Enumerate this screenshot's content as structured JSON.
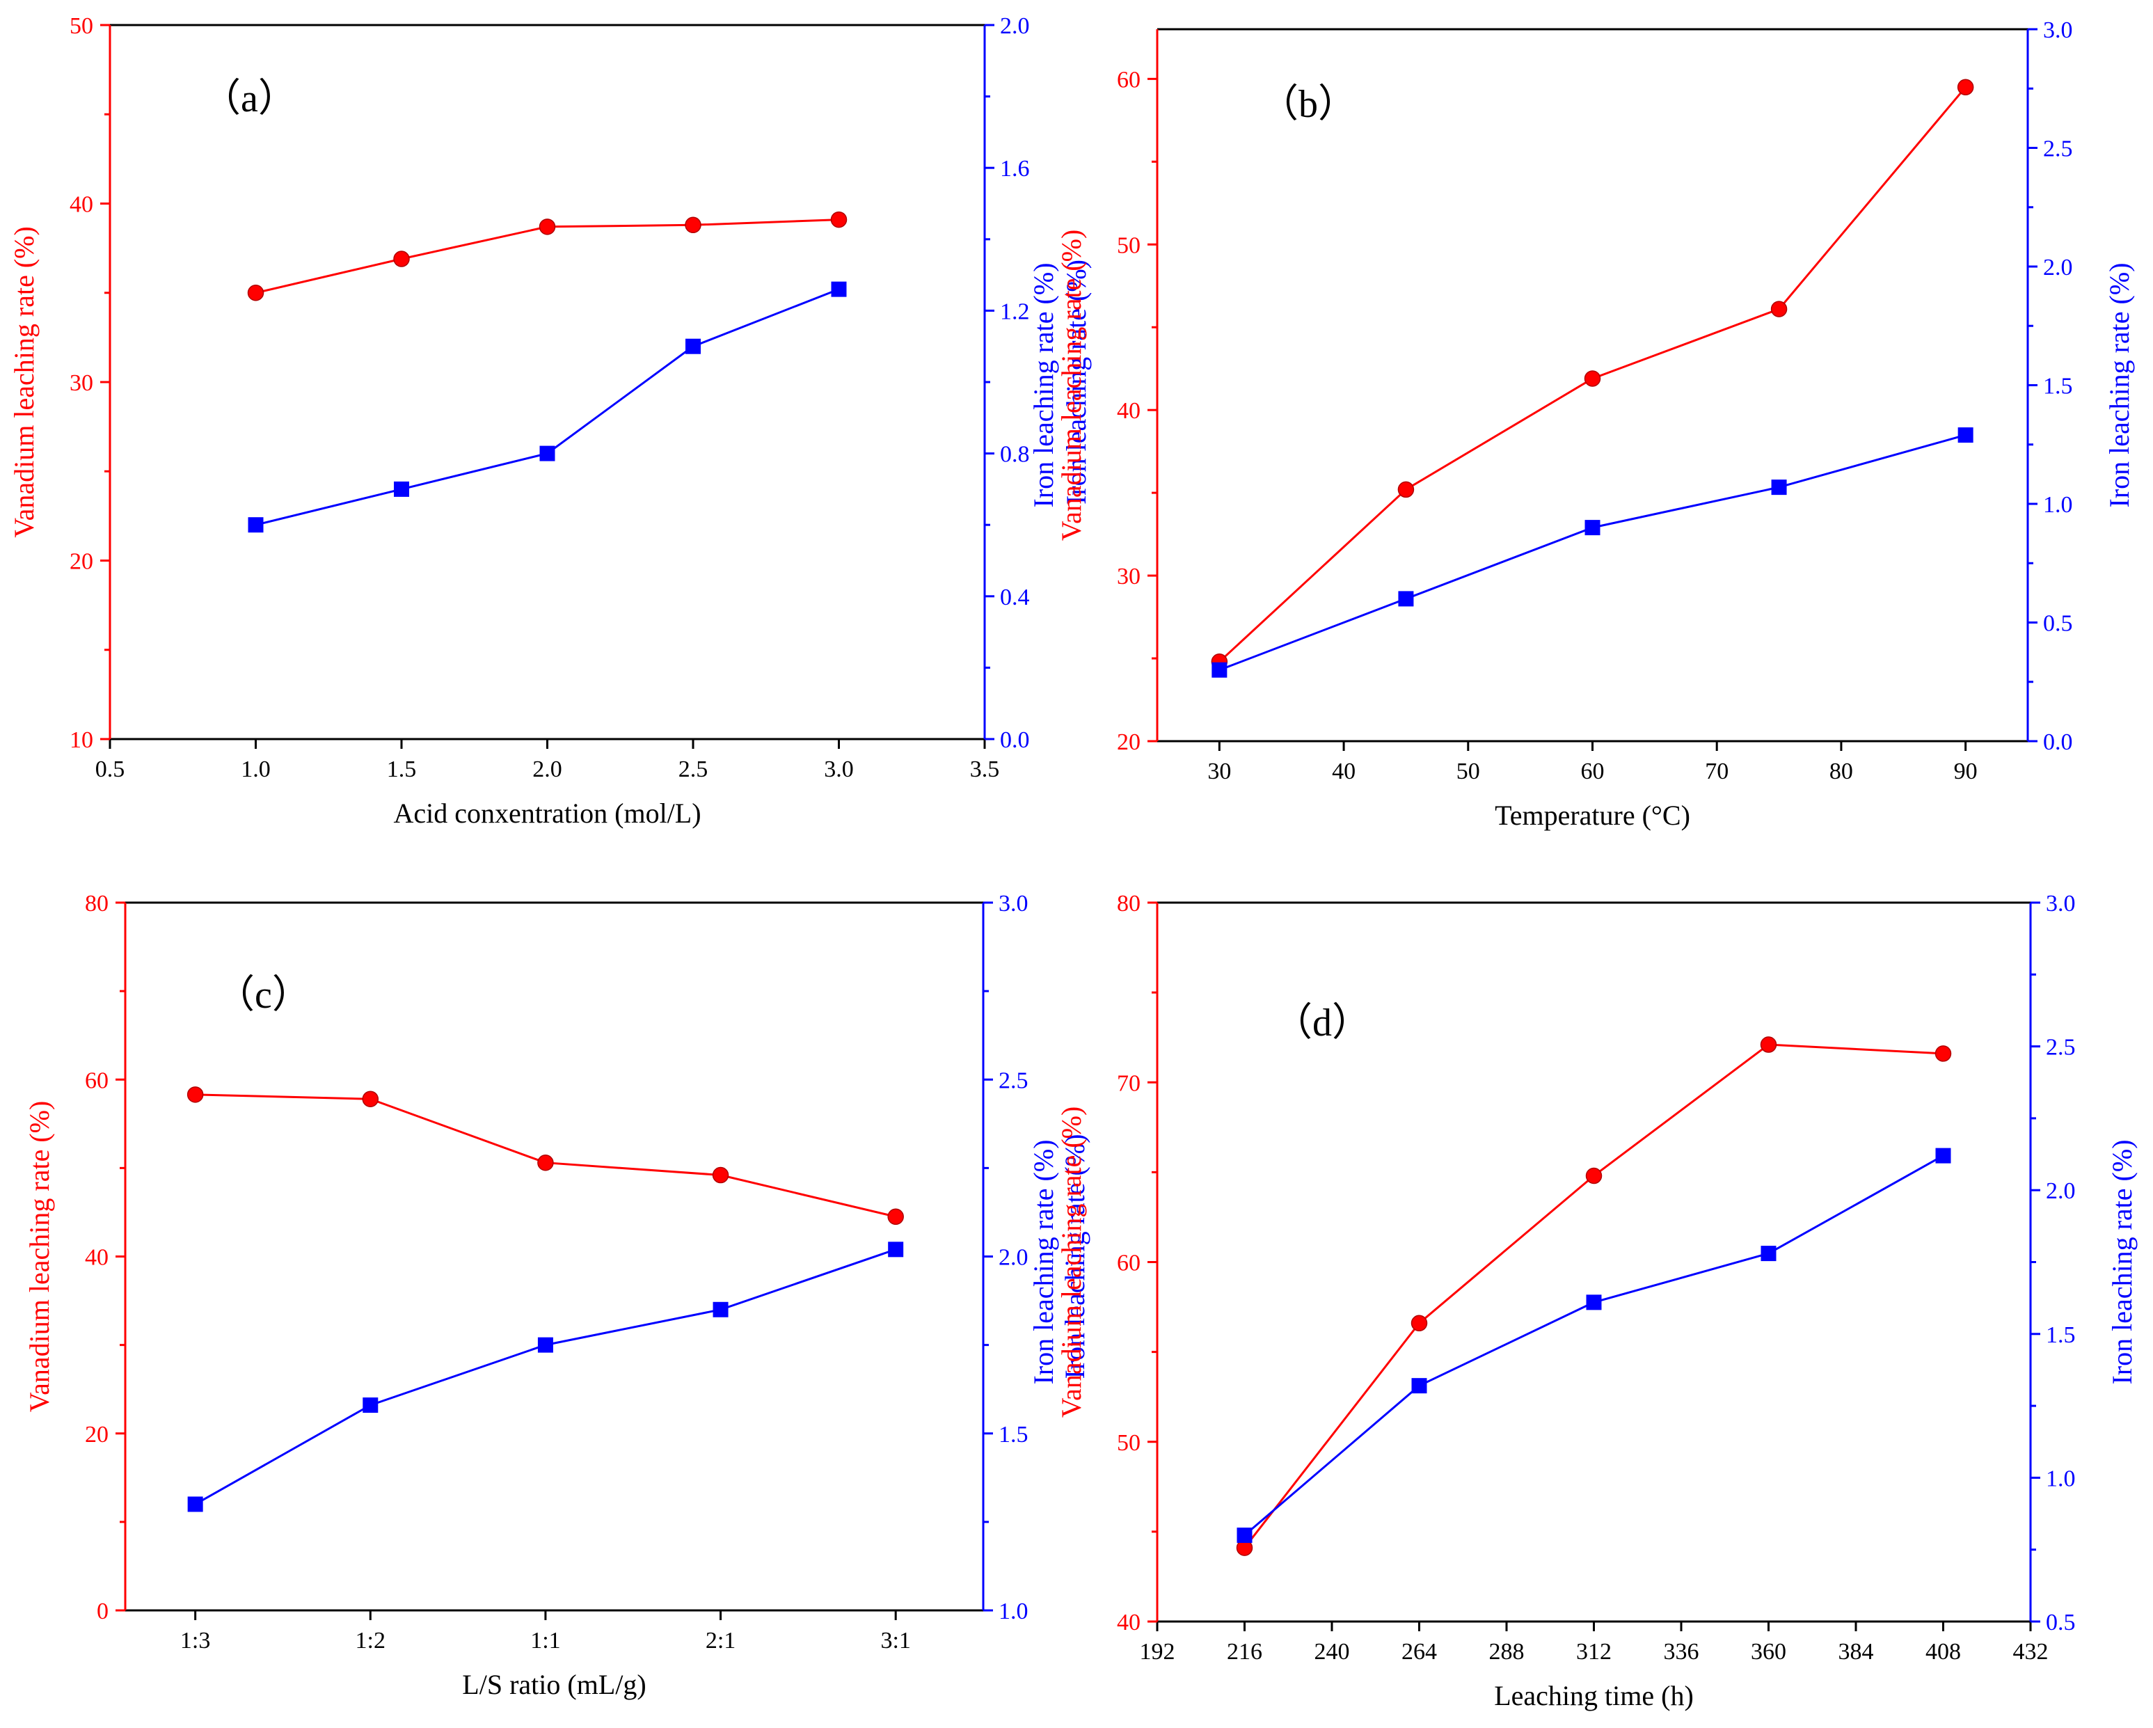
{
  "colors": {
    "vanadium": "#ff0000",
    "iron": "#0000ff",
    "axis": "#000000"
  },
  "chart_data": [
    {
      "type": "line",
      "panel_label": "（a）",
      "xlabel": "Acid conxentration (mol/L)",
      "ylabel_left": "Vanadium leaching rate (%)",
      "ylabel_right": "Iron leaching rate (%)",
      "xlim": [
        0.5,
        3.5
      ],
      "ylim_left": [
        10,
        50
      ],
      "ylim_right": [
        0.0,
        2.0
      ],
      "x_ticks": [
        "0.5",
        "1.0",
        "1.5",
        "2.0",
        "2.5",
        "3.0",
        "3.5"
      ],
      "y_left_ticks": [
        "10",
        "20",
        "30",
        "40",
        "50"
      ],
      "y_right_ticks": [
        "0.0",
        "0.4",
        "0.8",
        "1.2",
        "1.6",
        "2.0"
      ],
      "x": [
        1.0,
        1.5,
        2.0,
        2.5,
        3.0
      ],
      "series": [
        {
          "name": "Vanadium leaching rate",
          "axis": "left",
          "marker": "circle",
          "values": [
            35.0,
            36.9,
            38.7,
            38.8,
            39.1
          ]
        },
        {
          "name": "Iron leaching rate",
          "axis": "right",
          "marker": "square",
          "values": [
            0.6,
            0.7,
            0.8,
            1.1,
            1.26
          ]
        }
      ]
    },
    {
      "type": "line",
      "panel_label": "（b）",
      "xlabel": "Temperature (°C)",
      "ylabel_left": "Vanadium leaching rate (%)",
      "ylabel_right": "Iron leaching rate (%)",
      "ylabel_extra": "Iron leaching rate (%)",
      "xlim": [
        25,
        95
      ],
      "ylim_left": [
        20,
        63
      ],
      "ylim_right": [
        0.0,
        3.0
      ],
      "x_ticks": [
        "30",
        "40",
        "50",
        "60",
        "70",
        "80",
        "90"
      ],
      "y_left_ticks": [
        "20",
        "30",
        "40",
        "50",
        "60"
      ],
      "y_right_ticks": [
        "0.0",
        "0.5",
        "1.0",
        "1.5",
        "2.0",
        "2.5",
        "3.0"
      ],
      "x": [
        30,
        45,
        60,
        75,
        90
      ],
      "series": [
        {
          "name": "Vanadium leaching rate",
          "axis": "left",
          "marker": "circle",
          "values": [
            24.8,
            35.2,
            41.9,
            46.1,
            59.5
          ]
        },
        {
          "name": "Iron leaching rate",
          "axis": "right",
          "marker": "square",
          "values": [
            0.3,
            0.6,
            0.9,
            1.07,
            1.29
          ]
        }
      ]
    },
    {
      "type": "line",
      "panel_label": "（c）",
      "xlabel": "L/S ratio (mL/g)",
      "ylabel_left": "Vanadium leaching rate (%)",
      "ylabel_right": "Iron leaching rate (%)",
      "xlim": [
        -0.4,
        4.5
      ],
      "ylim_left": [
        0,
        80
      ],
      "ylim_right": [
        1.0,
        3.0
      ],
      "x_ticks": [
        "1:3",
        "1:2",
        "1:1",
        "2:1",
        "3:1"
      ],
      "x_tick_values": [
        0,
        1,
        2,
        3,
        4
      ],
      "y_left_ticks": [
        "0",
        "20",
        "40",
        "60",
        "80"
      ],
      "y_right_ticks": [
        "1.0",
        "1.5",
        "2.0",
        "2.5",
        "3.0"
      ],
      "x": [
        0,
        1,
        2,
        3,
        4
      ],
      "series": [
        {
          "name": "Vanadium leaching rate",
          "axis": "left",
          "marker": "circle",
          "values": [
            58.3,
            57.8,
            50.6,
            49.2,
            44.5
          ]
        },
        {
          "name": "Iron leaching rate",
          "axis": "right",
          "marker": "square",
          "values": [
            1.3,
            1.58,
            1.75,
            1.85,
            2.02
          ]
        }
      ]
    },
    {
      "type": "line",
      "panel_label": "（d）",
      "xlabel": "Leaching time (h)",
      "ylabel_left": "Vanadium leaching rate (%)",
      "ylabel_right": "Iron leaching rate (%)",
      "ylabel_extra": "Iron leaching rate (%)",
      "xlim": [
        192,
        432
      ],
      "ylim_left": [
        40,
        80
      ],
      "ylim_right": [
        0.5,
        3.0
      ],
      "x_ticks": [
        "192",
        "216",
        "240",
        "264",
        "288",
        "312",
        "336",
        "360",
        "384",
        "408",
        "432"
      ],
      "y_left_ticks": [
        "40",
        "50",
        "60",
        "70",
        "80"
      ],
      "y_right_ticks": [
        "0.5",
        "1.0",
        "1.5",
        "2.0",
        "2.5",
        "3.0"
      ],
      "x": [
        216,
        264,
        312,
        360,
        408
      ],
      "series": [
        {
          "name": "Vanadium leaching rate",
          "axis": "left",
          "marker": "circle",
          "values": [
            44.1,
            56.6,
            64.8,
            72.1,
            71.6
          ]
        },
        {
          "name": "Iron leaching rate",
          "axis": "right",
          "marker": "square",
          "values": [
            0.8,
            1.32,
            1.61,
            1.78,
            2.12
          ]
        }
      ]
    }
  ]
}
